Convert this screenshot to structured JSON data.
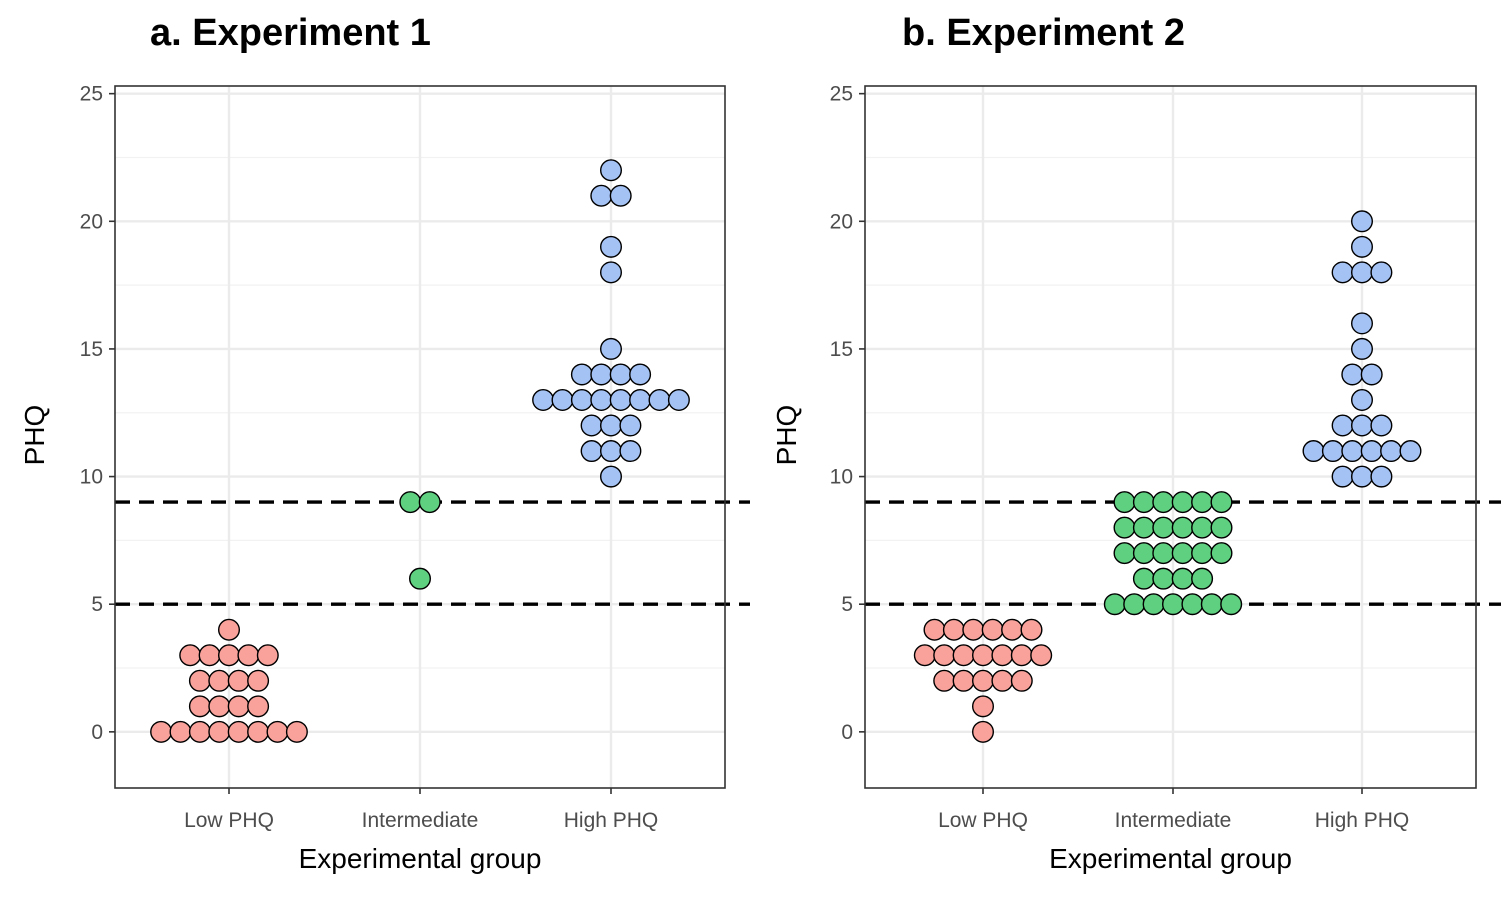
{
  "chart_data": [
    {
      "type": "scatter",
      "subtype": "dot-plot (beeswarm)",
      "title": "a. Experiment 1",
      "xlabel": "Experimental group",
      "ylabel": "PHQ",
      "categories": [
        "Low PHQ",
        "Intermediate",
        "High PHQ"
      ],
      "ylim": [
        -2.2,
        25.3
      ],
      "yticks": [
        0,
        5,
        10,
        15,
        20,
        25
      ],
      "grid": true,
      "reference_lines": [
        5,
        9
      ],
      "series": [
        {
          "category": "Low PHQ",
          "color": "#F8A29B",
          "values": [
            0,
            0,
            0,
            0,
            0,
            0,
            0,
            0,
            1,
            1,
            1,
            1,
            2,
            2,
            2,
            2,
            3,
            3,
            3,
            3,
            3,
            4
          ]
        },
        {
          "category": "Intermediate",
          "color": "#5FCF80",
          "values": [
            6,
            9,
            9
          ]
        },
        {
          "category": "High PHQ",
          "color": "#A5C2F5",
          "values": [
            10,
            11,
            11,
            11,
            12,
            12,
            12,
            13,
            13,
            13,
            13,
            13,
            13,
            13,
            13,
            14,
            14,
            14,
            14,
            15,
            18,
            19,
            21,
            21,
            22
          ]
        }
      ]
    },
    {
      "type": "scatter",
      "subtype": "dot-plot (beeswarm)",
      "title": "b. Experiment 2",
      "xlabel": "Experimental group",
      "ylabel": "PHQ",
      "categories": [
        "Low PHQ",
        "Intermediate",
        "High PHQ"
      ],
      "ylim": [
        -2.2,
        25.3
      ],
      "yticks": [
        0,
        5,
        10,
        15,
        20,
        25
      ],
      "grid": true,
      "reference_lines": [
        5,
        9
      ],
      "series": [
        {
          "category": "Low PHQ",
          "color": "#F8A29B",
          "values": [
            0,
            1,
            2,
            2,
            2,
            2,
            2,
            3,
            3,
            3,
            3,
            3,
            3,
            3,
            4,
            4,
            4,
            4,
            4,
            4
          ]
        },
        {
          "category": "Intermediate",
          "color": "#5FCF80",
          "values": [
            5,
            5,
            5,
            5,
            5,
            5,
            5,
            6,
            6,
            6,
            6,
            7,
            7,
            7,
            7,
            7,
            7,
            8,
            8,
            8,
            8,
            8,
            8,
            9,
            9,
            9,
            9,
            9,
            9
          ]
        },
        {
          "category": "High PHQ",
          "color": "#A5C2F5",
          "values": [
            10,
            10,
            10,
            11,
            11,
            11,
            11,
            11,
            11,
            12,
            12,
            12,
            13,
            14,
            14,
            15,
            16,
            18,
            18,
            18,
            19,
            20
          ]
        }
      ]
    }
  ]
}
